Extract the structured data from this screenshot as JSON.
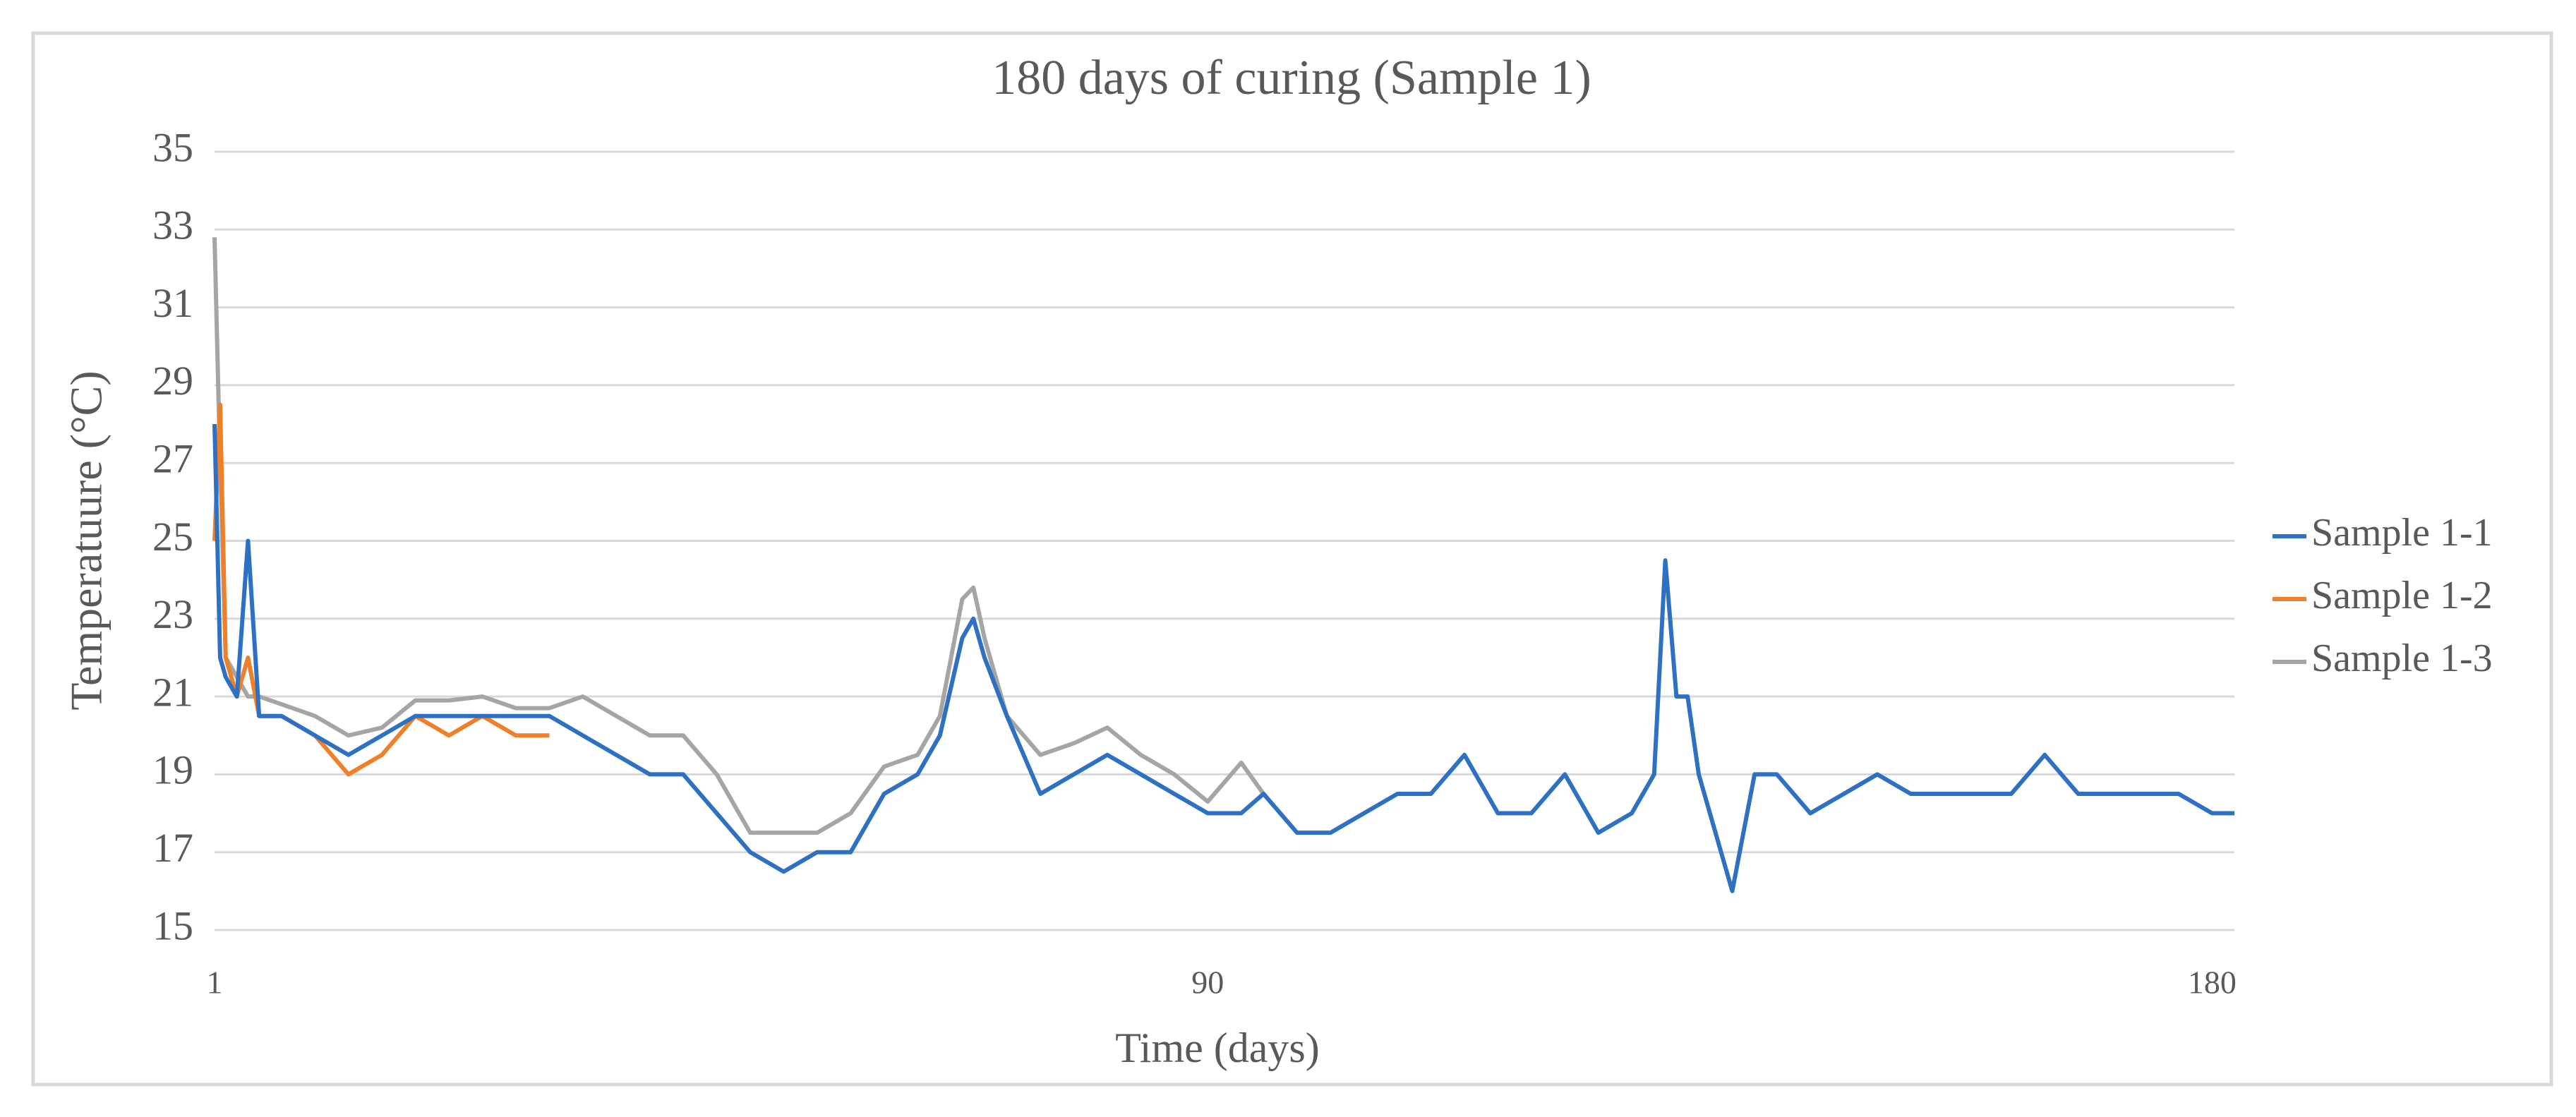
{
  "chart_data": {
    "type": "line",
    "title": "180 days of curing (Sample 1)",
    "x_label": "Time (days)",
    "y_label": "Temperatuure  (°C)",
    "x": [
      1,
      1.5,
      2,
      3,
      4,
      5,
      7,
      10,
      13,
      16,
      19,
      22,
      25,
      28,
      31,
      34,
      37,
      40,
      43,
      46,
      49,
      52,
      55,
      58,
      61,
      64,
      66,
      68,
      69,
      70,
      72,
      75,
      78,
      81,
      84,
      87,
      90,
      93,
      95,
      98,
      101,
      104,
      107,
      110,
      113,
      116,
      119,
      122,
      125,
      128,
      130,
      131,
      132,
      133,
      134,
      135,
      137,
      139,
      141,
      144,
      147,
      150,
      153,
      156,
      159,
      162,
      165,
      168,
      171,
      174,
      177,
      180,
      182
    ],
    "series": [
      {
        "name": "Sample 1-1",
        "color": "#2e70c2",
        "values": [
          28,
          22,
          21.5,
          21,
          25,
          20.5,
          20.5,
          20,
          19.5,
          20,
          20.5,
          20.5,
          20.5,
          20.5,
          20.5,
          20,
          19.5,
          19,
          19,
          18,
          17,
          16.5,
          17,
          17,
          18.5,
          19,
          20,
          22.5,
          23,
          22,
          20.5,
          18.5,
          19,
          19.5,
          19,
          18.5,
          18,
          18,
          18.5,
          17.5,
          17.5,
          18,
          18.5,
          18.5,
          19.5,
          18,
          18,
          19,
          17.5,
          18,
          19,
          24.5,
          21,
          21,
          19,
          18,
          16,
          19,
          19,
          18,
          18.5,
          19,
          18.5,
          18.5,
          18.5,
          18.5,
          19.5,
          18.5,
          18.5,
          18.5,
          18.5,
          18,
          18
        ]
      },
      {
        "name": "Sample 1-2",
        "color": "#f07f2a",
        "values": [
          25,
          28.5,
          22,
          21,
          22,
          20.5,
          20.5,
          20,
          19,
          19.5,
          20.5,
          20,
          20.5,
          20,
          20,
          null,
          null,
          null,
          null,
          null,
          null,
          null,
          null,
          null,
          null,
          null,
          null,
          null,
          null,
          null,
          null,
          null,
          null,
          null,
          null,
          null,
          null,
          null,
          null,
          null,
          null,
          null,
          null,
          null,
          null,
          null,
          null,
          null,
          null,
          null,
          null,
          null,
          null,
          null,
          null,
          null,
          null,
          null,
          null,
          null,
          null,
          null,
          null,
          null,
          null,
          null,
          null,
          null,
          null,
          null,
          null,
          null,
          null
        ]
      },
      {
        "name": "Sample 1-3",
        "color": "#a5a5a5",
        "values": [
          32.8,
          27,
          22,
          21.5,
          21,
          21,
          20.8,
          20.5,
          20,
          20.2,
          20.9,
          20.9,
          21,
          20.7,
          20.7,
          21,
          20.5,
          20,
          20,
          19,
          17.5,
          17.5,
          17.5,
          18,
          19.2,
          19.5,
          20.5,
          23.5,
          23.8,
          22.5,
          20.5,
          19.5,
          19.8,
          20.2,
          19.5,
          19,
          18.3,
          19.3,
          18.5,
          null,
          null,
          null,
          null,
          null,
          null,
          null,
          null,
          null,
          null,
          null,
          null,
          null,
          null,
          null,
          null,
          null,
          null,
          null,
          null,
          null,
          null,
          null,
          null,
          null,
          null,
          null,
          null,
          null,
          null,
          null,
          null,
          null,
          null
        ]
      }
    ],
    "xlim": [
      1,
      182
    ],
    "xticks": [
      1,
      90,
      180
    ],
    "ylim": [
      15,
      35
    ],
    "yticks": [
      15,
      17,
      19,
      21,
      23,
      25,
      27,
      29,
      31,
      33,
      35
    ],
    "grid": true,
    "legend": "right"
  }
}
